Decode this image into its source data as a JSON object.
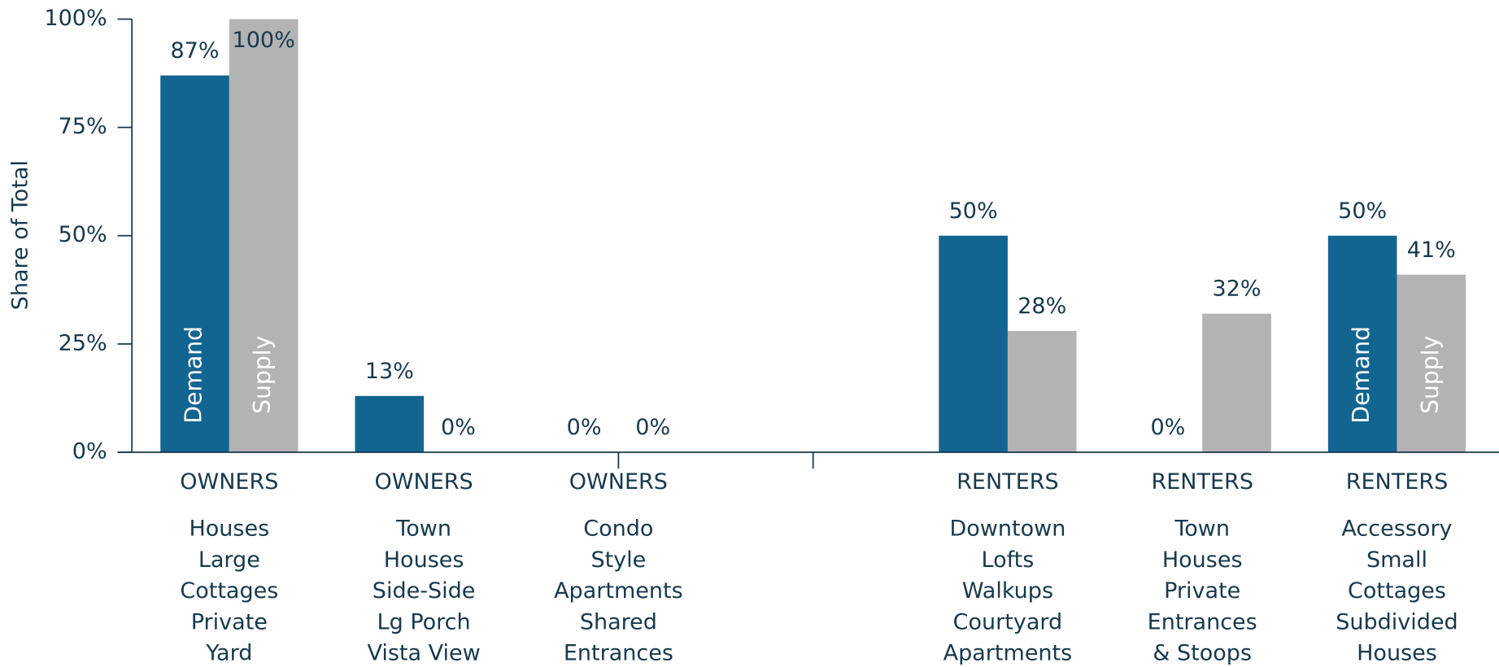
{
  "chart_data": {
    "type": "bar",
    "y_label": "Share of Total",
    "categories": [
      "OWNERS",
      "OWNERS",
      "OWNERS",
      null,
      "RENTERS",
      "RENTERS",
      "RENTERS"
    ],
    "category_descriptions": [
      [
        "Houses",
        "Large",
        "Cottages",
        "Private",
        "Yard"
      ],
      [
        "Town",
        "Houses",
        "Side-Side",
        "Lg Porch",
        "Vista View"
      ],
      [
        "Condo",
        "Style",
        "Apartments",
        "Shared",
        "Entrances"
      ],
      null,
      [
        "Downtown",
        "Lofts",
        "Walkups",
        "Courtyard",
        "Apartments"
      ],
      [
        "Town",
        "Houses",
        "Private",
        "Entrances",
        "& Stoops"
      ],
      [
        "Accessory",
        "Small",
        "Cottages",
        "Subdivided",
        "Houses"
      ]
    ],
    "series": [
      {
        "name": "Demand",
        "color": "#136591",
        "values": [
          87,
          13,
          0,
          null,
          50,
          0,
          50
        ],
        "value_labels": [
          "87%",
          "13%",
          "0%",
          null,
          "50%",
          "0%",
          "50%"
        ]
      },
      {
        "name": "Supply",
        "color": "#b3b3b3",
        "values": [
          100,
          0,
          0,
          null,
          28,
          32,
          41
        ],
        "value_labels": [
          "100%",
          "0%",
          "0%",
          null,
          "28%",
          "32%",
          "41%"
        ]
      }
    ],
    "ylim": [
      0,
      100
    ],
    "yticks": [
      {
        "value": 0,
        "label": "0%"
      },
      {
        "value": 25,
        "label": "25%"
      },
      {
        "value": 50,
        "label": "50%"
      },
      {
        "value": 75,
        "label": "75%"
      },
      {
        "value": 100,
        "label": "100%"
      }
    ],
    "grid": false
  }
}
